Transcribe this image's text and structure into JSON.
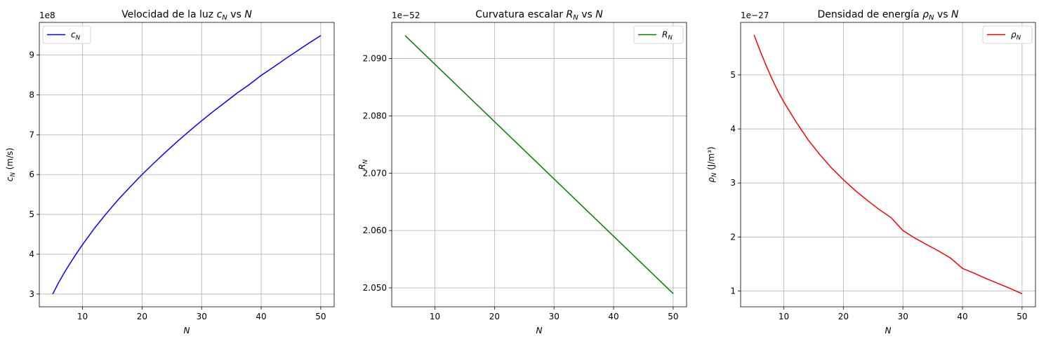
{
  "chart_data": [
    {
      "type": "line",
      "title": "Velocidad de la luz c_N vs N",
      "title_parts": [
        "Velocidad de la luz ",
        "c",
        "N",
        " vs ",
        "N"
      ],
      "xlabel": "N",
      "ylabel": "c_N (m/s)",
      "ylabel_parts": [
        "c",
        "N",
        " (m/s)"
      ],
      "offset_text": "1e8",
      "xlim": [
        2.75,
        52.25
      ],
      "ylim": [
        2.68,
        9.82
      ],
      "xticks": [
        10,
        20,
        30,
        40,
        50
      ],
      "yticks": [
        3,
        4,
        5,
        6,
        7,
        8,
        9
      ],
      "grid": true,
      "legend_position": "upper left",
      "series": [
        {
          "name": "c_N",
          "name_parts": [
            "c",
            "N"
          ],
          "color": "#0000ff",
          "x": [
            5,
            6,
            7,
            8,
            9,
            10,
            12,
            14,
            16,
            18,
            20,
            22,
            24,
            26,
            28,
            30,
            32,
            34,
            36,
            38,
            40,
            42,
            44,
            46,
            48,
            50
          ],
          "y": [
            3.0,
            3.29,
            3.55,
            3.79,
            4.02,
            4.24,
            4.65,
            5.02,
            5.37,
            5.69,
            6.0,
            6.29,
            6.57,
            6.84,
            7.1,
            7.35,
            7.59,
            7.82,
            8.05,
            8.26,
            8.49,
            8.69,
            8.9,
            9.1,
            9.3,
            9.49
          ]
        }
      ]
    },
    {
      "type": "line",
      "title": "Curvatura escalar R_N vs N",
      "title_parts": [
        "Curvatura escalar ",
        "R",
        "N",
        " vs ",
        "N"
      ],
      "xlabel": "N",
      "ylabel": "R_N",
      "ylabel_parts": [
        "R",
        "N",
        ""
      ],
      "offset_text": "1e−52",
      "xlim": [
        2.75,
        52.25
      ],
      "ylim": [
        2.0467,
        2.0963
      ],
      "xticks": [
        10,
        20,
        30,
        40,
        50
      ],
      "yticks": [
        2.05,
        2.06,
        2.07,
        2.08,
        2.09
      ],
      "grid": true,
      "legend_position": "upper right",
      "series": [
        {
          "name": "R_N",
          "name_parts": [
            "R",
            "N"
          ],
          "color": "#008000",
          "x": [
            5,
            50
          ],
          "y": [
            2.094,
            2.049
          ]
        }
      ]
    },
    {
      "type": "line",
      "title": "Densidad de energía ρ_N vs N",
      "title_parts": [
        "Densidad de energía ",
        "ρ",
        "N",
        " vs ",
        "N"
      ],
      "xlabel": "N",
      "ylabel": "ρ_N (J/m³)",
      "ylabel_parts": [
        "ρ",
        "N",
        " (J/m³)"
      ],
      "offset_text": "1e−27",
      "xlim": [
        2.75,
        52.25
      ],
      "ylim": [
        0.71,
        5.97
      ],
      "xticks": [
        10,
        20,
        30,
        40,
        50
      ],
      "yticks": [
        1,
        2,
        3,
        4,
        5
      ],
      "grid": true,
      "legend_position": "upper right",
      "series": [
        {
          "name": "ρ_N",
          "name_parts": [
            "ρ",
            "N"
          ],
          "color": "#ff0000",
          "x": [
            5,
            6,
            7,
            8,
            9,
            10,
            12,
            14,
            16,
            18,
            20,
            22,
            24,
            26,
            28,
            30,
            32,
            34,
            36,
            38,
            40,
            42,
            44,
            46,
            48,
            50
          ],
          "y": [
            5.74,
            5.45,
            5.18,
            4.93,
            4.7,
            4.5,
            4.14,
            3.81,
            3.53,
            3.28,
            3.06,
            2.86,
            2.68,
            2.51,
            2.36,
            2.12,
            1.98,
            1.86,
            1.74,
            1.61,
            1.42,
            1.33,
            1.23,
            1.14,
            1.05,
            0.95
          ]
        }
      ]
    }
  ]
}
